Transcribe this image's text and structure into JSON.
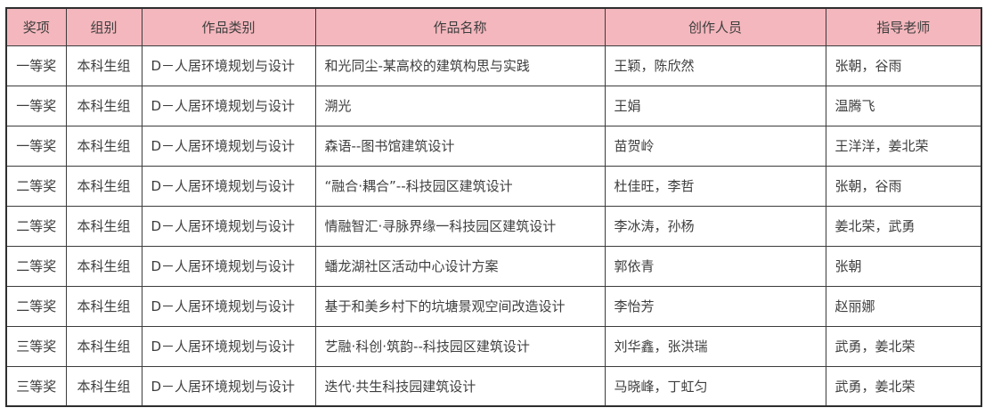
{
  "colors": {
    "header_background": "#f4b7bd",
    "border": "#3c3c3c",
    "text": "#3e3e3e"
  },
  "table": {
    "columns": [
      "奖项",
      "组别",
      "作品类别",
      "作品名称",
      "创作人员",
      "指导老师"
    ],
    "rows": [
      [
        "一等奖",
        "本科生组",
        "D－人居环境规划与设计",
        "和光同尘-某高校的建筑构思与实践",
        "王颖，陈欣然",
        "张朝，谷雨"
      ],
      [
        "一等奖",
        "本科生组",
        "D－人居环境规划与设计",
        "溯光",
        "王娟",
        "温腾飞"
      ],
      [
        "一等奖",
        "本科生组",
        "D－人居环境规划与设计",
        "森语--图书馆建筑设计",
        "苗贺岭",
        "王洋洋，姜北荣"
      ],
      [
        "二等奖",
        "本科生组",
        "D－人居环境规划与设计",
        "“融合·耦合”--科技园区建筑设计",
        "杜佳旺，李哲",
        "张朝，谷雨"
      ],
      [
        "二等奖",
        "本科生组",
        "D－人居环境规划与设计",
        "情融智汇·寻脉界缘一科技园区建筑设计",
        "李冰涛，孙杨",
        "姜北荣，武勇"
      ],
      [
        "二等奖",
        "本科生组",
        "D－人居环境规划与设计",
        "蟠龙湖社区活动中心设计方案",
        "郭依青",
        "张朝"
      ],
      [
        "二等奖",
        "本科生组",
        "D－人居环境规划与设计",
        "基于和美乡村下的坑塘景观空间改造设计",
        "李怡芳",
        "赵丽娜"
      ],
      [
        "三等奖",
        "本科生组",
        "D－人居环境规划与设计",
        "艺融·科创·筑韵--科技园区建筑设计",
        "刘华鑫，张洪瑞",
        "武勇，姜北荣"
      ],
      [
        "三等奖",
        "本科生组",
        "D－人居环境规划与设计",
        "迭代·共生科技园建筑设计",
        "马晓峰，丁虹匀",
        "武勇，姜北荣"
      ]
    ]
  }
}
